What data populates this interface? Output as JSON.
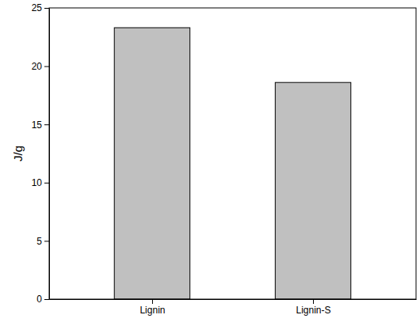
{
  "chart_data": {
    "type": "bar",
    "ylabel": "J/g",
    "categories": [
      "Lignin",
      "Lignin-S"
    ],
    "values": [
      23.3,
      18.6
    ],
    "color": "#c0c0c0",
    "ylim": [
      0,
      25
    ],
    "yticks": [
      0,
      5,
      10,
      15,
      20,
      25
    ]
  }
}
